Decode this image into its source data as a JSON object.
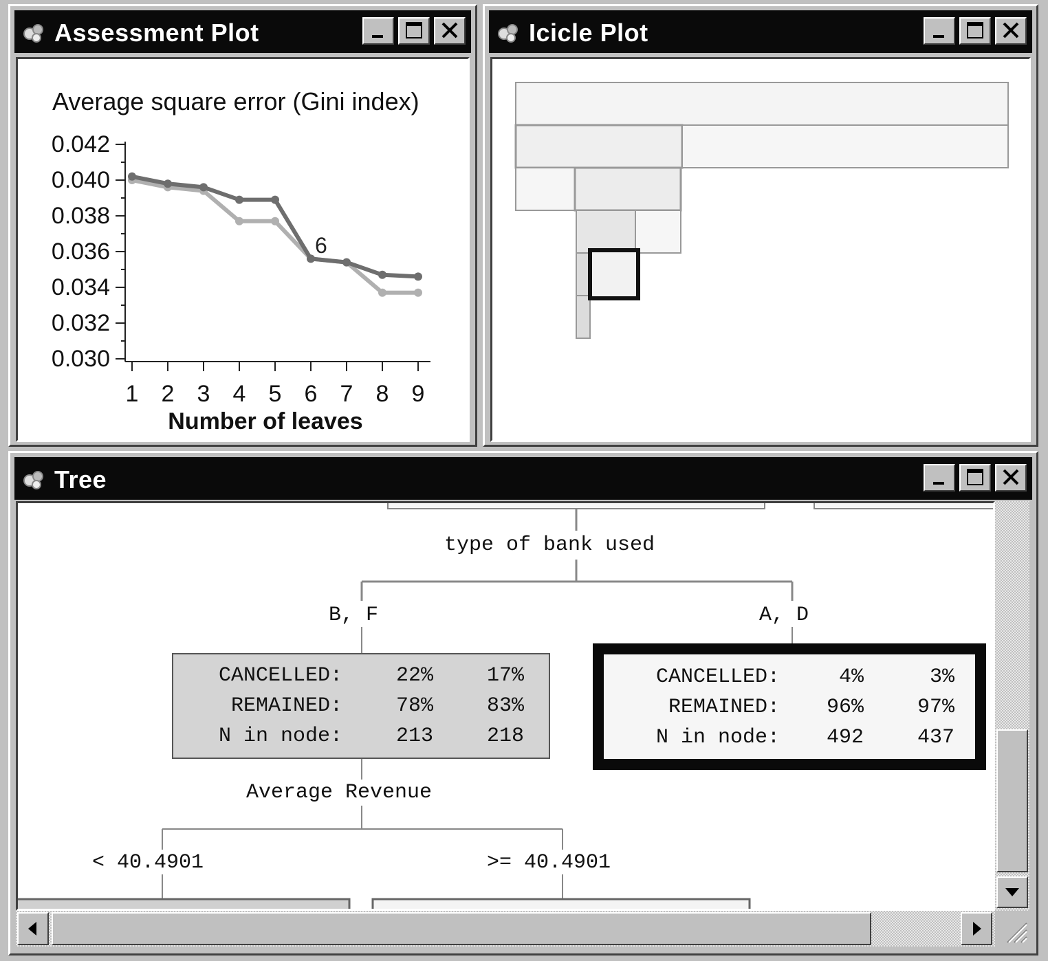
{
  "assessment_window": {
    "title": "Assessment Plot",
    "icon": "app-icon"
  },
  "icicle_window": {
    "title": "Icicle Plot",
    "icon": "app-icon"
  },
  "tree_window": {
    "title": "Tree",
    "icon": "app-icon"
  },
  "chart_data": {
    "type": "line",
    "title": "Average square error (Gini index)",
    "xlabel": "Number of leaves",
    "ylabel": "",
    "x": [
      1,
      2,
      3,
      4,
      5,
      6,
      7,
      8,
      9
    ],
    "xlim": [
      1,
      9
    ],
    "ylim": [
      0.03,
      0.042
    ],
    "yticks": [
      "0.042",
      "0.040",
      "0.038",
      "0.036",
      "0.034",
      "0.032",
      "0.030"
    ],
    "xticks": [
      "1",
      "2",
      "3",
      "4",
      "5",
      "6",
      "7",
      "8",
      "9"
    ],
    "series": [
      {
        "color": "#6e6e6e",
        "values": [
          0.0402,
          0.0398,
          0.0396,
          0.0389,
          0.0389,
          0.0356,
          0.0354,
          0.0347,
          0.0346
        ]
      },
      {
        "color": "#b0b0b0",
        "values": [
          0.04,
          0.0396,
          0.0394,
          0.0377,
          0.0377,
          0.0356,
          0.0354,
          0.0337,
          0.0337
        ]
      }
    ],
    "annotation": "6",
    "grid": false
  },
  "tree": {
    "split1": "type of bank used",
    "branch_left": "B, F",
    "branch_right": "A, D",
    "left_node": {
      "rows": [
        {
          "label": "CANCELLED:",
          "v1": "22%",
          "v2": "17%"
        },
        {
          "label": "REMAINED:",
          "v1": "78%",
          "v2": "83%"
        },
        {
          "label": "N in node:",
          "v1": "213",
          "v2": "218"
        }
      ]
    },
    "right_node": {
      "rows": [
        {
          "label": "CANCELLED:",
          "v1": "4%",
          "v2": "3%"
        },
        {
          "label": "REMAINED:",
          "v1": "96%",
          "v2": "97%"
        },
        {
          "label": "N in node:",
          "v1": "492",
          "v2": "437"
        }
      ]
    },
    "split2": "Average Revenue",
    "branch2_left": "< 40.4901",
    "branch2_right": ">= 40.4901"
  }
}
